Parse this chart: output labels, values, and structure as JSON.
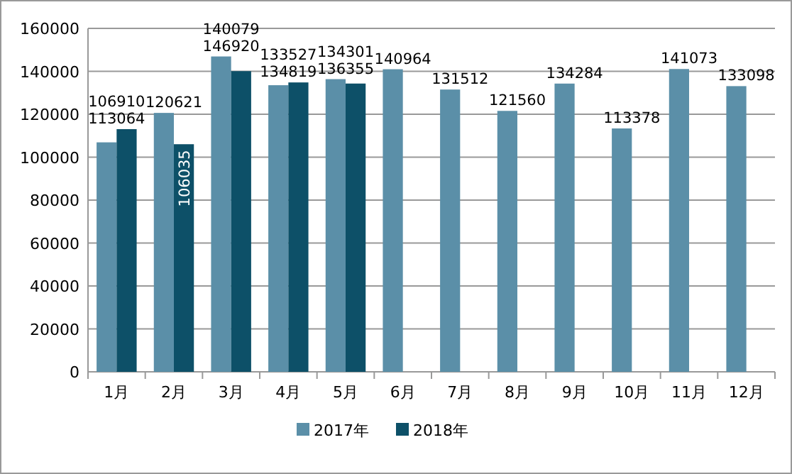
{
  "chart_data": {
    "type": "bar",
    "categories": [
      "1月",
      "2月",
      "3月",
      "4月",
      "5月",
      "6月",
      "7月",
      "8月",
      "9月",
      "10月",
      "11月",
      "12月"
    ],
    "series": [
      {
        "name": "2017年",
        "color": "#5b8fa8",
        "values": [
          106910,
          120621,
          146920,
          133527,
          136355,
          140964,
          131512,
          121560,
          134284,
          113378,
          141073,
          133098
        ]
      },
      {
        "name": "2018年",
        "color": "#0d5068",
        "values": [
          113064,
          106035,
          140079,
          134819,
          134301,
          null,
          null,
          null,
          null,
          null,
          null,
          null
        ]
      }
    ],
    "ylim": [
      0,
      160000
    ],
    "yticks": [
      0,
      20000,
      40000,
      60000,
      80000,
      100000,
      120000,
      140000,
      160000
    ],
    "grid": "y",
    "legend": "bottom",
    "data_labels": true
  }
}
